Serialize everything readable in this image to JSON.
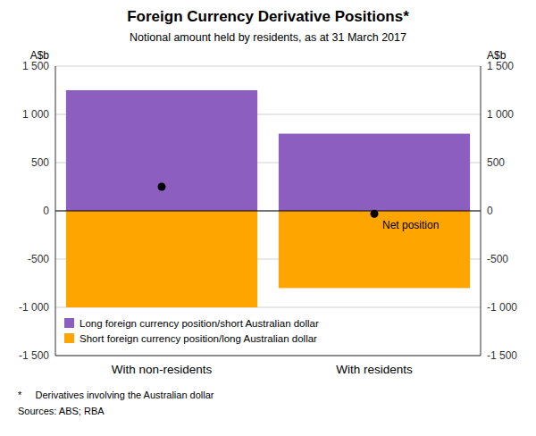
{
  "chart_data": {
    "type": "bar",
    "title": "Foreign Currency Derivative Positions*",
    "subtitle": "Notional amount held by residents, as at 31 March 2017",
    "y_label": "A$b",
    "y2_label": "A$b",
    "categories": [
      "With non-residents",
      "With residents"
    ],
    "series": [
      {
        "name": "Long foreign currency position/short Australian dollar",
        "color": "#8B5EBF",
        "values": [
          1250,
          800
        ]
      },
      {
        "name": "Short foreign currency position/long Australian dollar",
        "color": "#FFA500",
        "values": [
          -1000,
          -800
        ]
      },
      {
        "name": "Net position",
        "type": "scatter",
        "marker": "circle",
        "color": "#000000",
        "values": [
          250,
          -30
        ]
      }
    ],
    "stacked": true,
    "ylim": [
      -1500,
      1500
    ],
    "yticks": [
      {
        "value": -1500,
        "label": "-1 500"
      },
      {
        "value": -1000,
        "label": "-1 000"
      },
      -500,
      0,
      500,
      {
        "value": 1000,
        "label": "1 000"
      },
      {
        "value": 1500,
        "label": "1 500"
      }
    ],
    "y2lim": [
      -1500,
      1500
    ],
    "y2ticks": [
      {
        "value": -1500,
        "label": "-1 500"
      },
      {
        "value": -1000,
        "label": "-1 000"
      },
      -500,
      0,
      500,
      {
        "value": 1000,
        "label": "1 000"
      },
      {
        "value": 1500,
        "label": "1 500"
      }
    ],
    "grid": true,
    "legend": "lower left",
    "notes": [
      "*     Derivatives involving the Australian dollar",
      "Sources: ABS; RBA"
    ]
  }
}
